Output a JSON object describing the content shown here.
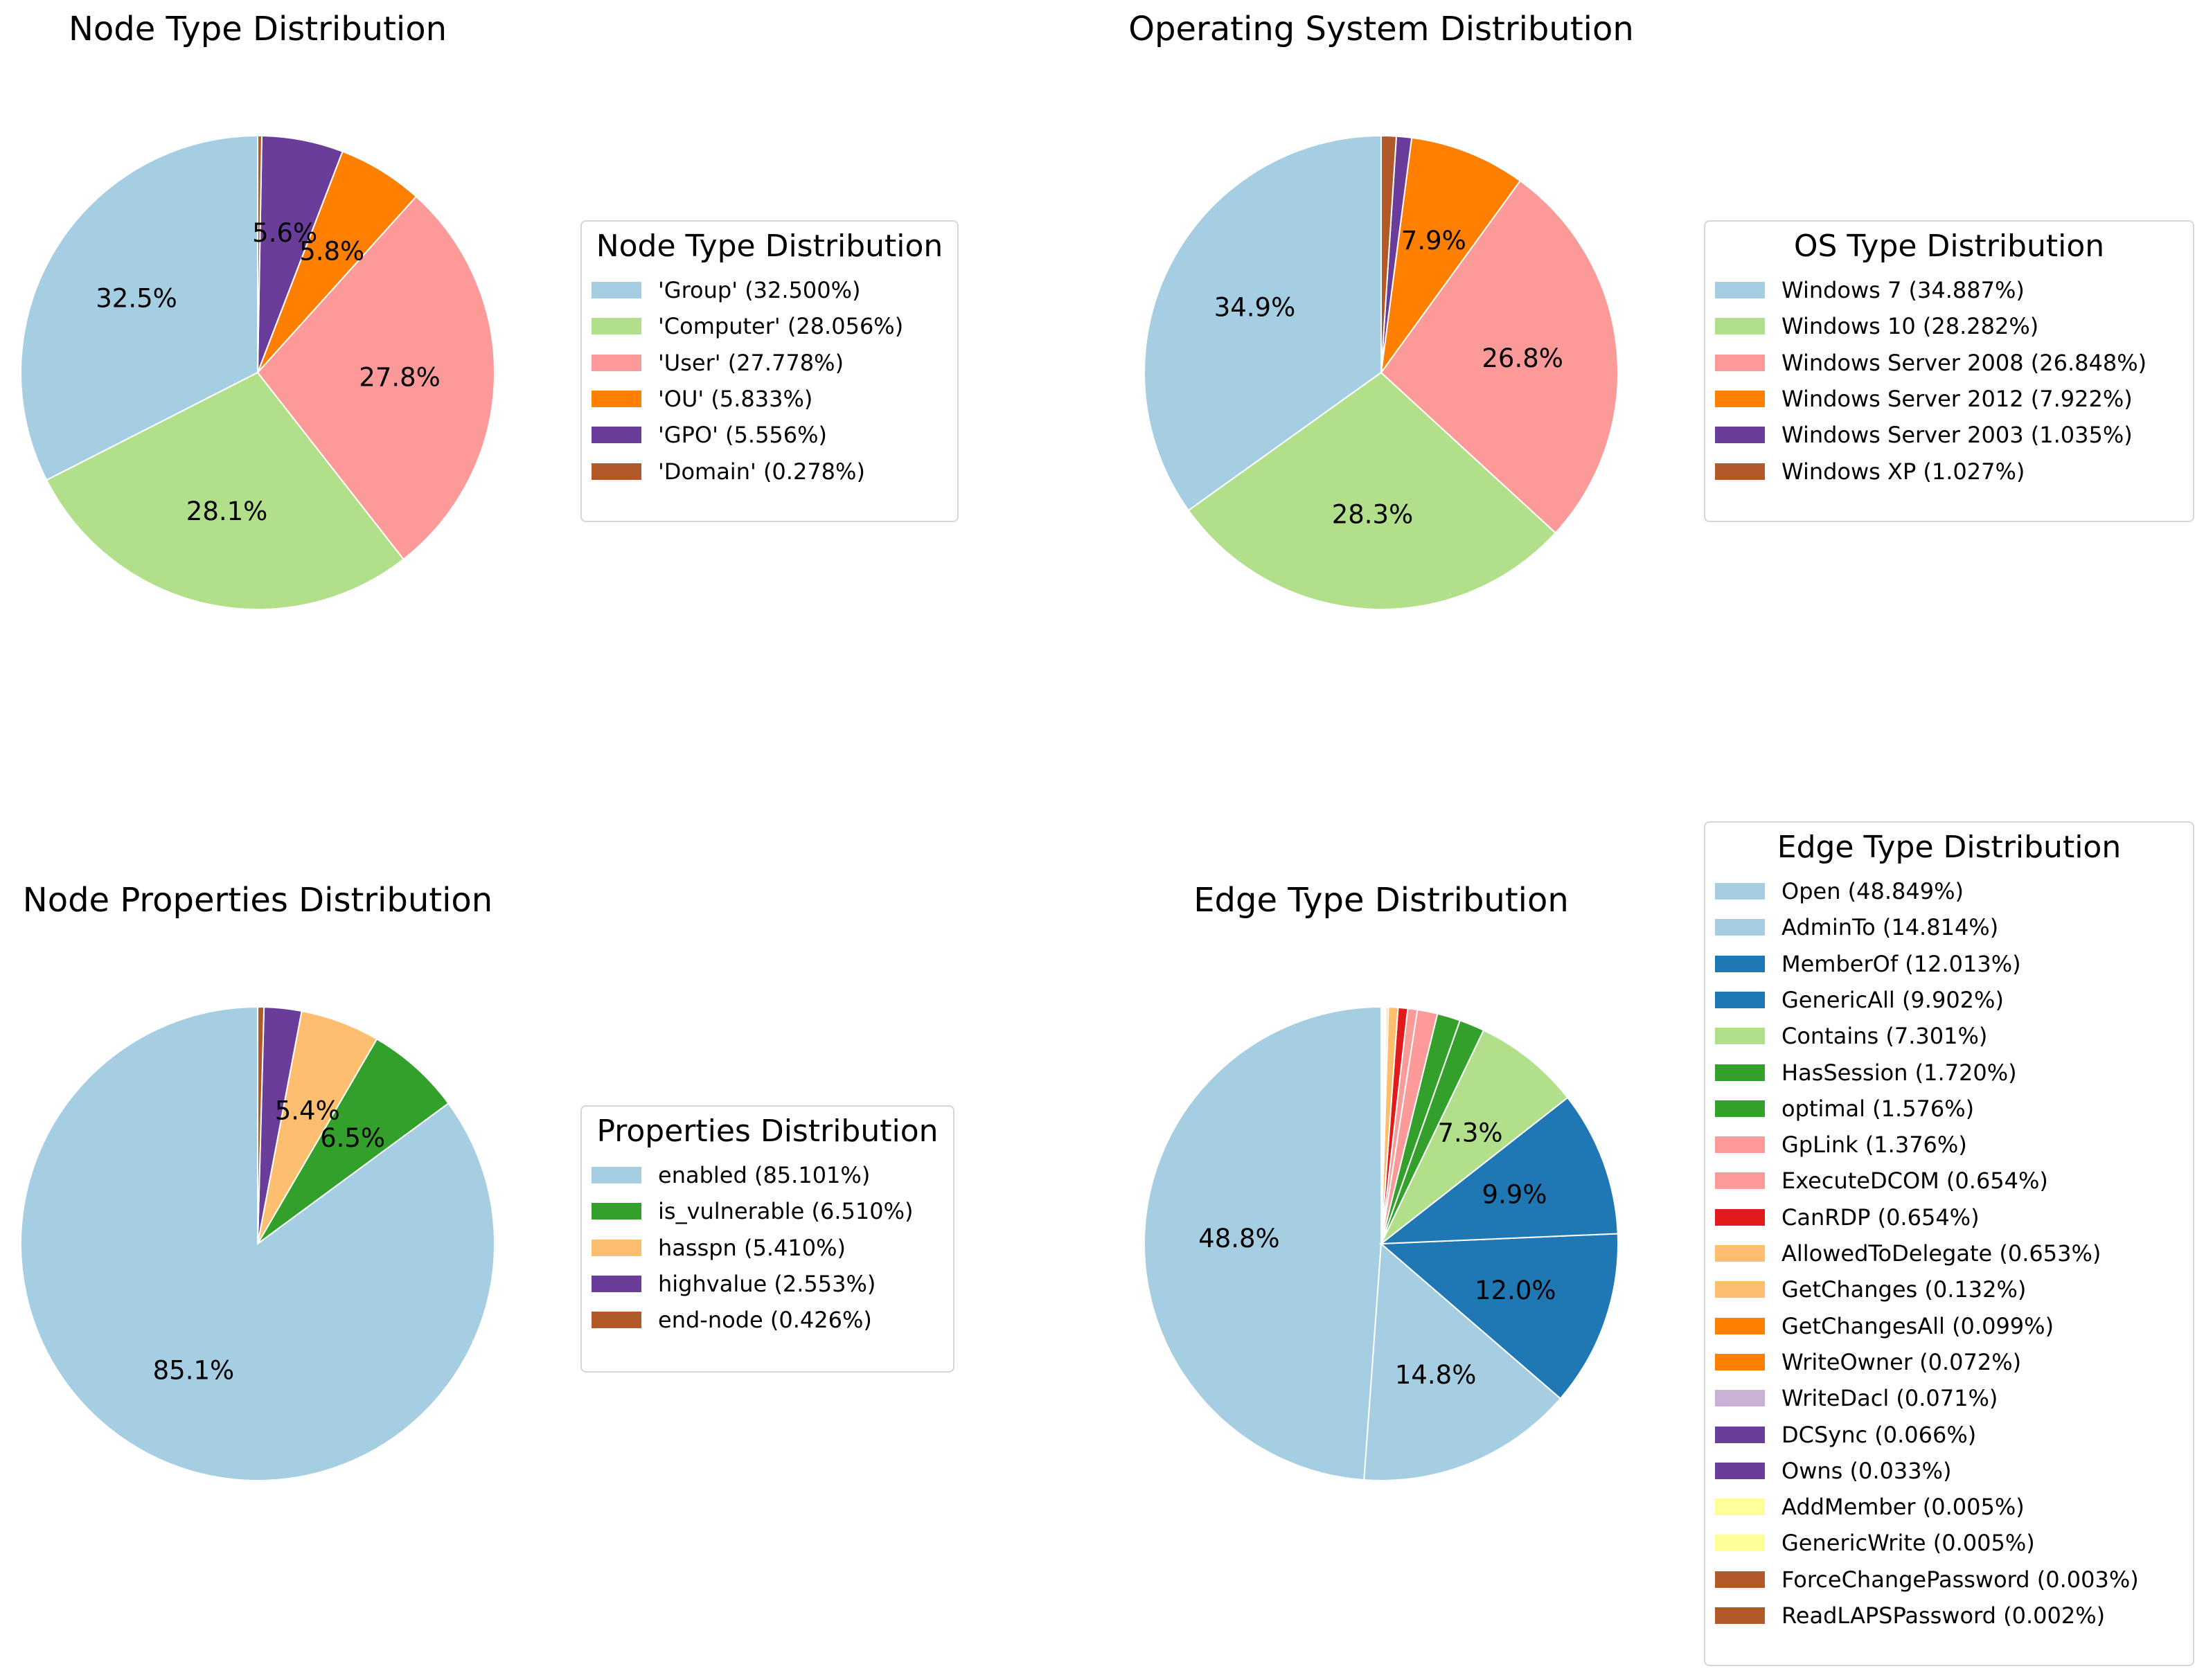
{
  "chart_data": [
    {
      "type": "pie",
      "title": "Node Type Distribution",
      "legend_title": "Node Type Distribution",
      "legend_placement": "right",
      "slices": [
        {
          "label": "'Group' (32.500%)",
          "value": 32.5,
          "pct_label": "32.5%",
          "color": "#a6cee3"
        },
        {
          "label": "'Computer' (28.056%)",
          "value": 28.056,
          "pct_label": "28.1%",
          "color": "#b2df8a"
        },
        {
          "label": "'User' (27.778%)",
          "value": 27.778,
          "pct_label": "27.8%",
          "color": "#fb9a99"
        },
        {
          "label": "'OU' (5.833%)",
          "value": 5.833,
          "pct_label": "5.8%",
          "color": "#ff7f00"
        },
        {
          "label": "'GPO' (5.556%)",
          "value": 5.556,
          "pct_label": "5.6%",
          "color": "#6a3d9a"
        },
        {
          "label": "'Domain' (0.278%)",
          "value": 0.278,
          "pct_label": "",
          "color": "#b15928"
        }
      ]
    },
    {
      "type": "pie",
      "title": "Operating System Distribution",
      "legend_title": "OS Type Distribution",
      "legend_placement": "right",
      "slices": [
        {
          "label": "Windows 7 (34.887%)",
          "value": 34.887,
          "pct_label": "34.9%",
          "color": "#a6cee3"
        },
        {
          "label": "Windows 10 (28.282%)",
          "value": 28.282,
          "pct_label": "28.3%",
          "color": "#b2df8a"
        },
        {
          "label": "Windows Server 2008 (26.848%)",
          "value": 26.848,
          "pct_label": "26.8%",
          "color": "#fb9a99"
        },
        {
          "label": "Windows Server 2012 (7.922%)",
          "value": 7.922,
          "pct_label": "7.9%",
          "color": "#ff7f00"
        },
        {
          "label": "Windows Server 2003 (1.035%)",
          "value": 1.035,
          "pct_label": "",
          "color": "#6a3d9a"
        },
        {
          "label": "Windows XP (1.027%)",
          "value": 1.027,
          "pct_label": "",
          "color": "#b15928"
        }
      ]
    },
    {
      "type": "pie",
      "title": "Node Properties Distribution",
      "legend_title": "Properties Distribution",
      "legend_placement": "right",
      "slices": [
        {
          "label": "enabled (85.101%)",
          "value": 85.101,
          "pct_label": "85.1%",
          "color": "#a6cee3"
        },
        {
          "label": "is_vulnerable (6.510%)",
          "value": 6.51,
          "pct_label": "6.5%",
          "color": "#33a02c"
        },
        {
          "label": "hasspn (5.410%)",
          "value": 5.41,
          "pct_label": "5.4%",
          "color": "#fdbf6f"
        },
        {
          "label": "highvalue (2.553%)",
          "value": 2.553,
          "pct_label": "",
          "color": "#6a3d9a"
        },
        {
          "label": "end-node (0.426%)",
          "value": 0.426,
          "pct_label": "",
          "color": "#b15928"
        }
      ]
    },
    {
      "type": "pie",
      "title": "Edge Type Distribution",
      "legend_title": "Edge Type Distribution",
      "legend_placement": "upper-right",
      "slices": [
        {
          "label": "Open (48.849%)",
          "value": 48.849,
          "pct_label": "48.8%",
          "color": "#a6cee3"
        },
        {
          "label": "AdminTo (14.814%)",
          "value": 14.814,
          "pct_label": "14.8%",
          "color": "#a6cee3"
        },
        {
          "label": "MemberOf (12.013%)",
          "value": 12.013,
          "pct_label": "12.0%",
          "color": "#1f78b4"
        },
        {
          "label": "GenericAll (9.902%)",
          "value": 9.902,
          "pct_label": "9.9%",
          "color": "#1f78b4"
        },
        {
          "label": "Contains (7.301%)",
          "value": 7.301,
          "pct_label": "7.3%",
          "color": "#b2df8a"
        },
        {
          "label": "HasSession (1.720%)",
          "value": 1.72,
          "pct_label": "",
          "color": "#33a02c"
        },
        {
          "label": "optimal (1.576%)",
          "value": 1.576,
          "pct_label": "",
          "color": "#33a02c"
        },
        {
          "label": "GpLink (1.376%)",
          "value": 1.376,
          "pct_label": "",
          "color": "#fb9a99"
        },
        {
          "label": "ExecuteDCOM (0.654%)",
          "value": 0.654,
          "pct_label": "",
          "color": "#fb9a99"
        },
        {
          "label": "CanRDP (0.654%)",
          "value": 0.654,
          "pct_label": "",
          "color": "#e31a1c"
        },
        {
          "label": "AllowedToDelegate (0.653%)",
          "value": 0.653,
          "pct_label": "",
          "color": "#fdbf6f"
        },
        {
          "label": "GetChanges (0.132%)",
          "value": 0.132,
          "pct_label": "",
          "color": "#fdbf6f"
        },
        {
          "label": "GetChangesAll (0.099%)",
          "value": 0.099,
          "pct_label": "",
          "color": "#ff7f00"
        },
        {
          "label": "WriteOwner (0.072%)",
          "value": 0.072,
          "pct_label": "",
          "color": "#ff7f00"
        },
        {
          "label": "WriteDacl (0.071%)",
          "value": 0.071,
          "pct_label": "",
          "color": "#cab2d6"
        },
        {
          "label": "DCSync (0.066%)",
          "value": 0.066,
          "pct_label": "",
          "color": "#6a3d9a"
        },
        {
          "label": "Owns (0.033%)",
          "value": 0.033,
          "pct_label": "",
          "color": "#6a3d9a"
        },
        {
          "label": "AddMember (0.005%)",
          "value": 0.005,
          "pct_label": "",
          "color": "#ffff99"
        },
        {
          "label": "GenericWrite (0.005%)",
          "value": 0.005,
          "pct_label": "",
          "color": "#ffff99"
        },
        {
          "label": "ForceChangePassword (0.003%)",
          "value": 0.003,
          "pct_label": "",
          "color": "#b15928"
        },
        {
          "label": "ReadLAPSPassword (0.002%)",
          "value": 0.002,
          "pct_label": "",
          "color": "#b15928"
        }
      ]
    }
  ]
}
